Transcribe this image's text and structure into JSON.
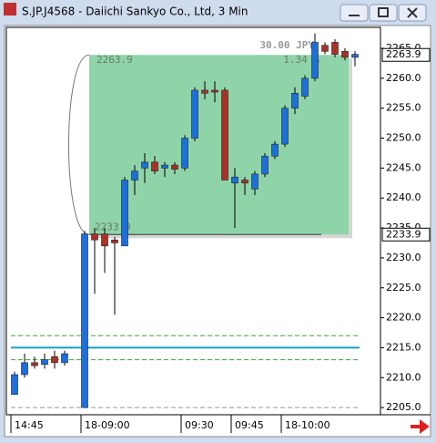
{
  "window": {
    "title": "S.JP.J4568 - Daiichi Sankyo Co., Ltd, 3 Min"
  },
  "chart_data": {
    "type": "candlestick",
    "categories": [
      "14:45",
      null,
      null,
      null,
      null,
      null,
      null,
      "18-09:00",
      null,
      null,
      null,
      null,
      null,
      null,
      null,
      null,
      null,
      "09:30",
      null,
      null,
      null,
      null,
      "09:45",
      null,
      null,
      null,
      null,
      "18-10:00",
      null,
      null,
      null,
      null,
      null,
      null,
      null
    ],
    "open": [
      2207.2,
      2210.5,
      2212.5,
      2212.2,
      2213.5,
      2212.5,
      null,
      2205,
      2234,
      2234,
      2233,
      2232,
      2243,
      2245,
      2246,
      2245,
      2245.5,
      2245,
      2250,
      2258,
      2258,
      2258,
      2242.5,
      2243,
      2241.5,
      2244,
      2247,
      2249,
      2255,
      2257,
      2260,
      2265.5,
      2266,
      2264.5,
      2263.5
    ],
    "high": [
      2211,
      2214,
      2213.5,
      2214,
      2214.5,
      2214.5,
      null,
      2234.5,
      2235,
      2235,
      2233.5,
      2243.5,
      2245.5,
      2247.5,
      2247,
      2246,
      2246,
      2250.5,
      2258.5,
      2259.5,
      2259.5,
      2258.5,
      2245,
      2243.5,
      2244.5,
      2247.5,
      2249.5,
      2255.5,
      2258.5,
      2260.5,
      2267.5,
      2266,
      2266.5,
      2265,
      2264.5
    ],
    "low": [
      2207.2,
      2210,
      2211.5,
      2211.5,
      2211.5,
      2212,
      null,
      2205,
      2224,
      2227.5,
      2220.5,
      2232,
      2240.5,
      2242.5,
      2244,
      2243.5,
      2244,
      2244.5,
      2249.5,
      2256.5,
      2256,
      2243,
      2235,
      2240.5,
      2240.5,
      2243.5,
      2246.5,
      2248.5,
      2254,
      2256.5,
      2259.5,
      2264,
      2263.5,
      2263,
      2262
    ],
    "close": [
      2210.5,
      2212.5,
      2212,
      2213,
      2212.5,
      2214,
      null,
      2234,
      2233,
      2232,
      2232.5,
      2243,
      2244.5,
      2246,
      2244.5,
      2245.5,
      2244.8,
      2250,
      2258,
      2257.5,
      2257.8,
      2243,
      2243.5,
      2242.5,
      2244,
      2247,
      2249,
      2255,
      2257.5,
      2260,
      2266,
      2264.5,
      2264,
      2263.5,
      2264
    ],
    "up_color": "#1f6fd8",
    "down_color": "#a8322a",
    "ylim": [
      2203.8,
      2268.2
    ],
    "yticks": [
      {
        "value": 2205,
        "label": "2205.0"
      },
      {
        "value": 2210,
        "label": "2210.0"
      },
      {
        "value": 2215,
        "label": "2215.0"
      },
      {
        "value": 2220,
        "label": "2220.0"
      },
      {
        "value": 2225,
        "label": "2225.0"
      },
      {
        "value": 2230,
        "label": "2230.0"
      },
      {
        "value": 2235,
        "label": "2235.0"
      },
      {
        "value": 2240,
        "label": "2240.0"
      },
      {
        "value": 2245,
        "label": "2245.0"
      },
      {
        "value": 2250,
        "label": "2250.0"
      },
      {
        "value": 2255,
        "label": "2255.0"
      },
      {
        "value": 2260,
        "label": "2260.0"
      },
      {
        "value": 2265,
        "label": "2265.0"
      }
    ],
    "levels": [
      {
        "value": 2217,
        "color": "#3aaa3a",
        "dash": true
      },
      {
        "value": 2215,
        "color": "#1aa0c0",
        "dash": false
      },
      {
        "value": 2213,
        "color": "#3aaa3a",
        "dash": true
      },
      {
        "value": 2205,
        "color": "#999999",
        "dash": true
      }
    ],
    "annotation": {
      "top": 2263.9,
      "bottom": 2233.9,
      "change": "30.00 JPY",
      "percent": "1.34 %",
      "color": "#8fd4a8"
    }
  }
}
